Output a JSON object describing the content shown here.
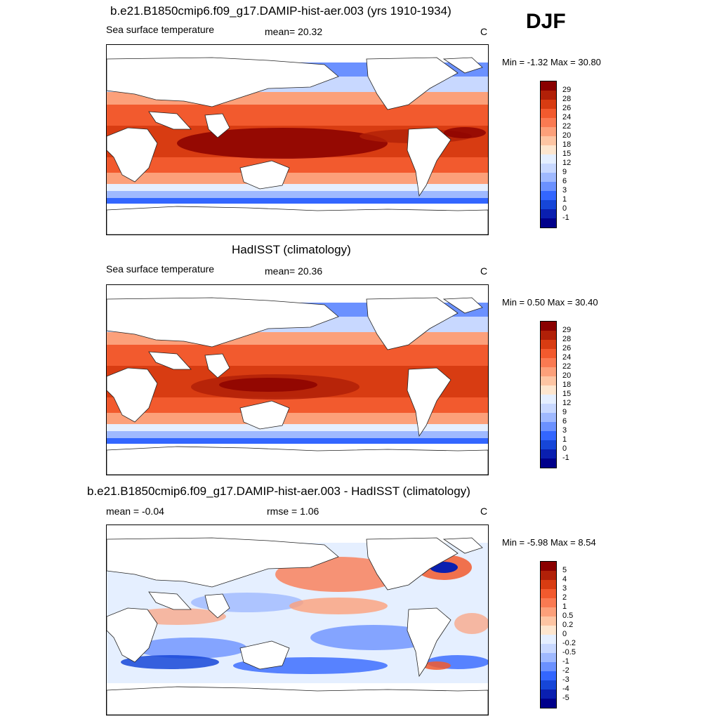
{
  "season": "DJF",
  "units": "C",
  "panels": [
    {
      "title": "b.e21.B1850cmip6.f09_g17.DAMIP-hist-aer.003 (yrs 1910-1934)",
      "left_label": "Sea surface temperature",
      "mid_label": "mean=  20.32",
      "minmax": "Min =  -1.32 Max =  30.80"
    },
    {
      "title": "HadISST (climatology)",
      "left_label": "Sea surface temperature",
      "mid_label": "mean=  20.36",
      "minmax": "Min =   0.50 Max =  30.40"
    },
    {
      "title": "b.e21.B1850cmip6.f09_g17.DAMIP-hist-aer.003 - HadISST (climatology)",
      "left_label": "mean =  -0.04",
      "mid_label": "rmse =   1.06",
      "minmax": "Min =  -5.98 Max =   8.54"
    }
  ],
  "chart_data": [
    {
      "type": "heatmap",
      "title": "b.e21.B1850cmip6.f09_g17.DAMIP-hist-aer.003 (yrs 1910-1934)",
      "variable": "Sea surface temperature",
      "units": "C",
      "mean": 20.32,
      "min": -1.32,
      "max": 30.8,
      "colorbar_levels": [
        -1,
        0,
        1,
        3,
        6,
        9,
        12,
        15,
        18,
        20,
        22,
        24,
        26,
        28,
        29
      ],
      "colorbar_labels": [
        "29",
        "28",
        "26",
        "24",
        "22",
        "20",
        "18",
        "15",
        "12",
        "9",
        "6",
        "3",
        "1",
        "0",
        "-1"
      ],
      "colors": [
        "#00008b",
        "#0a1fb0",
        "#1646d8",
        "#3366ff",
        "#6b91ff",
        "#9fb9ff",
        "#c8d8ff",
        "#e5efff",
        "#fde6cf",
        "#fdc5a3",
        "#fca07a",
        "#fa7a52",
        "#f25a2e",
        "#d83c12",
        "#b12008",
        "#8a0000"
      ],
      "legend_position": "right"
    },
    {
      "type": "heatmap",
      "title": "HadISST (climatology)",
      "variable": "Sea surface temperature",
      "units": "C",
      "mean": 20.36,
      "min": 0.5,
      "max": 30.4,
      "colorbar_levels": [
        -1,
        0,
        1,
        3,
        6,
        9,
        12,
        15,
        18,
        20,
        22,
        24,
        26,
        28,
        29
      ],
      "colorbar_labels": [
        "29",
        "28",
        "26",
        "24",
        "22",
        "20",
        "18",
        "15",
        "12",
        "9",
        "6",
        "3",
        "1",
        "0",
        "-1"
      ],
      "colors": [
        "#00008b",
        "#0a1fb0",
        "#1646d8",
        "#3366ff",
        "#6b91ff",
        "#9fb9ff",
        "#c8d8ff",
        "#e5efff",
        "#fde6cf",
        "#fdc5a3",
        "#fca07a",
        "#fa7a52",
        "#f25a2e",
        "#d83c12",
        "#b12008",
        "#8a0000"
      ],
      "legend_position": "right"
    },
    {
      "type": "heatmap",
      "title": "b.e21.B1850cmip6.f09_g17.DAMIP-hist-aer.003 - HadISST (climatology)",
      "units": "C",
      "mean": -0.04,
      "rmse": 1.06,
      "min": -5.98,
      "max": 8.54,
      "colorbar_levels": [
        -5,
        -4,
        -3,
        -2,
        -1,
        -0.5,
        -0.2,
        0,
        0.2,
        0.5,
        1,
        2,
        3,
        4,
        5
      ],
      "colorbar_labels": [
        "5",
        "4",
        "3",
        "2",
        "1",
        "0.5",
        "0.2",
        "0",
        "-0.2",
        "-0.5",
        "-1",
        "-2",
        "-3",
        "-4",
        "-5"
      ],
      "colors": [
        "#00008b",
        "#0a1fb0",
        "#1646d8",
        "#3366ff",
        "#6b91ff",
        "#9fb9ff",
        "#c8d8ff",
        "#e5efff",
        "#fde6cf",
        "#fdc5a3",
        "#fca07a",
        "#fa7a52",
        "#f25a2e",
        "#d83c12",
        "#b12008",
        "#8a0000"
      ],
      "legend_position": "right"
    }
  ]
}
